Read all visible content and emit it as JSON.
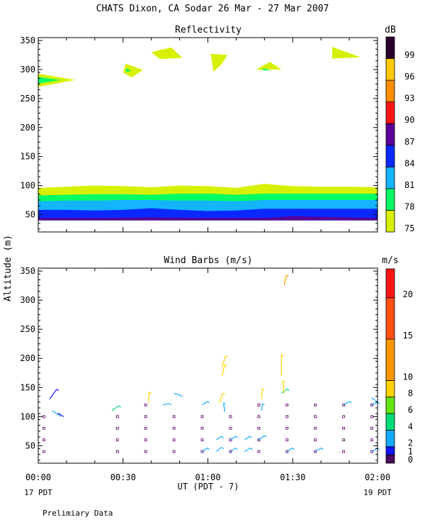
{
  "header": {
    "title": "CHATS Dixon, CA  Sodar  26 Mar - 27 Mar 2007"
  },
  "footer": {
    "note": "Prelimiary Data",
    "xlabel": "UT  (PDT - 7)",
    "start_day": "17 PDT",
    "end_day": "19 PDT"
  },
  "y_label": "Altitude (m)",
  "x_ticks": [
    "00:00",
    "00:30",
    "01:00",
    "01:30",
    "02:00"
  ],
  "colors": {
    "reflectivity_scale": [
      "#d7f000",
      "#00ff64",
      "#14b4ff",
      "#0a28ff",
      "#5a0096",
      "#ff1414",
      "#ff8c00",
      "#ffc800",
      "#2a002a"
    ],
    "wind_scale": [
      "#4a0a5a",
      "#1414ff",
      "#14aaff",
      "#00dc78",
      "#64e614",
      "#ffd200",
      "#ff9600",
      "#ff5014",
      "#ff1414"
    ]
  },
  "chart_data": [
    {
      "type": "heatmap",
      "title": "Reflectivity",
      "colorbar_unit": "dB",
      "colorbar_ticks": [
        "75",
        "78",
        "81",
        "84",
        "87",
        "90",
        "93",
        "96",
        "99"
      ],
      "colorbar_range": [
        75,
        101
      ],
      "xlim_minutes": [
        0,
        120
      ],
      "ylim": [
        20,
        355
      ],
      "ytick_labels": [
        "50",
        "100",
        "150",
        "200",
        "250",
        "300",
        "350"
      ],
      "ytick_values": [
        50,
        100,
        150,
        200,
        250,
        300,
        350
      ],
      "layers": [
        {
          "level": 75,
          "top": [
            [
              0,
              96
            ],
            [
              10,
              98
            ],
            [
              20,
              100
            ],
            [
              30,
              99
            ],
            [
              40,
              97
            ],
            [
              50,
              100
            ],
            [
              60,
              99
            ],
            [
              70,
              96
            ],
            [
              80,
              103
            ],
            [
              90,
              99
            ],
            [
              100,
              98
            ],
            [
              110,
              98
            ],
            [
              120,
              97
            ]
          ],
          "base": 40
        },
        {
          "level": 78,
          "top": [
            [
              0,
              83
            ],
            [
              10,
              84
            ],
            [
              20,
              85
            ],
            [
              30,
              85
            ],
            [
              40,
              84
            ],
            [
              50,
              86
            ],
            [
              60,
              86
            ],
            [
              70,
              84
            ],
            [
              80,
              86
            ],
            [
              90,
              86
            ],
            [
              100,
              86
            ],
            [
              110,
              86
            ],
            [
              120,
              86
            ]
          ],
          "base": 40
        },
        {
          "level": 81,
          "top": [
            [
              0,
              73
            ],
            [
              10,
              74
            ],
            [
              20,
              74
            ],
            [
              30,
              75
            ],
            [
              40,
              75
            ],
            [
              50,
              74
            ],
            [
              60,
              74
            ],
            [
              70,
              73
            ],
            [
              80,
              75
            ],
            [
              90,
              75
            ],
            [
              100,
              75
            ],
            [
              110,
              75
            ],
            [
              120,
              75
            ]
          ],
          "base": 40
        },
        {
          "level": 84,
          "top": [
            [
              0,
              58
            ],
            [
              10,
              58
            ],
            [
              20,
              57
            ],
            [
              30,
              58
            ],
            [
              40,
              61
            ],
            [
              50,
              58
            ],
            [
              60,
              56
            ],
            [
              70,
              57
            ],
            [
              80,
              60
            ],
            [
              90,
              60
            ],
            [
              100,
              60
            ],
            [
              110,
              60
            ],
            [
              120,
              60
            ]
          ],
          "base": 40
        },
        {
          "level": 87,
          "top": [
            [
              0,
              44
            ],
            [
              20,
              44
            ],
            [
              40,
              45
            ],
            [
              60,
              44
            ],
            [
              80,
              44
            ],
            [
              90,
              47
            ],
            [
              100,
              46
            ],
            [
              120,
              44
            ]
          ],
          "base": 40
        }
      ],
      "patches": [
        {
          "level": 75,
          "points": [
            [
              0,
              293
            ],
            [
              13,
              282
            ],
            [
              0,
              270
            ]
          ]
        },
        {
          "level": 78,
          "points": [
            [
              0,
              287
            ],
            [
              8,
              282
            ],
            [
              0,
              276
            ]
          ]
        },
        {
          "level": 75,
          "points": [
            [
              31,
              310
            ],
            [
              37,
              299
            ],
            [
              33,
              286
            ],
            [
              30,
              295
            ]
          ]
        },
        {
          "level": 78,
          "points": [
            [
              31,
              302
            ],
            [
              33,
              298
            ],
            [
              31,
              296
            ]
          ]
        },
        {
          "level": 75,
          "points": [
            [
              40,
              330
            ],
            [
              47,
              338
            ],
            [
              51,
              320
            ],
            [
              43,
              318
            ]
          ]
        },
        {
          "level": 75,
          "points": [
            [
              61,
              327
            ],
            [
              67,
              325
            ],
            [
              65,
              310
            ],
            [
              62,
              296
            ]
          ]
        },
        {
          "level": 75,
          "points": [
            [
              77,
              300
            ],
            [
              82,
              313
            ],
            [
              86,
              300
            ]
          ]
        },
        {
          "level": 78,
          "points": [
            [
              80,
              302
            ],
            [
              82,
              298
            ],
            [
              79,
              299
            ]
          ]
        },
        {
          "level": 75,
          "points": [
            [
              104,
              339
            ],
            [
              114,
              321
            ],
            [
              104,
              319
            ]
          ]
        }
      ]
    },
    {
      "type": "scatter",
      "title": "Wind Barbs (m/s)",
      "colorbar_unit": "m/s",
      "colorbar_ticks": [
        "0",
        "1",
        "2",
        "4",
        "6",
        "8",
        "10",
        "15",
        "20"
      ],
      "colorbar_range": [
        0,
        23.5
      ],
      "xlim_minutes": [
        0,
        120
      ],
      "ylim": [
        20,
        355
      ],
      "ytick_labels": [
        "50",
        "100",
        "150",
        "200",
        "250",
        "300",
        "350"
      ],
      "ytick_values": [
        50,
        100,
        150,
        200,
        250,
        300,
        350
      ],
      "calm_points": [
        [
          2,
          100
        ],
        [
          2,
          80
        ],
        [
          2,
          60
        ],
        [
          2,
          40
        ],
        [
          28,
          100
        ],
        [
          28,
          80
        ],
        [
          28,
          60
        ],
        [
          28,
          40
        ],
        [
          38,
          120
        ],
        [
          38,
          100
        ],
        [
          38,
          80
        ],
        [
          38,
          60
        ],
        [
          38,
          40
        ],
        [
          48,
          100
        ],
        [
          48,
          80
        ],
        [
          48,
          60
        ],
        [
          48,
          40
        ],
        [
          58,
          100
        ],
        [
          58,
          80
        ],
        [
          58,
          60
        ],
        [
          58,
          40
        ],
        [
          68,
          100
        ],
        [
          68,
          80
        ],
        [
          68,
          60
        ],
        [
          68,
          40
        ],
        [
          78,
          120
        ],
        [
          78,
          100
        ],
        [
          78,
          80
        ],
        [
          78,
          60
        ],
        [
          78,
          40
        ],
        [
          88,
          120
        ],
        [
          88,
          100
        ],
        [
          88,
          80
        ],
        [
          88,
          60
        ],
        [
          88,
          40
        ],
        [
          98,
          120
        ],
        [
          98,
          100
        ],
        [
          98,
          80
        ],
        [
          98,
          60
        ],
        [
          98,
          40
        ],
        [
          108,
          120
        ],
        [
          108,
          100
        ],
        [
          108,
          80
        ],
        [
          108,
          60
        ],
        [
          108,
          40
        ],
        [
          118,
          120
        ],
        [
          118,
          100
        ],
        [
          118,
          80
        ],
        [
          118,
          60
        ],
        [
          118,
          40
        ]
      ],
      "barbs": [
        [
          4,
          130,
          10,
          14,
          1.6
        ],
        [
          5,
          110,
          9,
          -6,
          2.5
        ],
        [
          9,
          100,
          -8,
          5,
          1.5
        ],
        [
          26,
          110,
          10,
          7,
          4.5
        ],
        [
          39,
          124,
          1,
          15,
          8
        ],
        [
          44,
          120,
          9,
          2,
          3
        ],
        [
          48,
          140,
          9,
          -3,
          3
        ],
        [
          58,
          120,
          7,
          5,
          2
        ],
        [
          58,
          40,
          7,
          5,
          3
        ],
        [
          63,
          40,
          7,
          6,
          3
        ],
        [
          68,
          40,
          7,
          5,
          3
        ],
        [
          73,
          40,
          8,
          5,
          3
        ],
        [
          88,
          40,
          7,
          5,
          3
        ],
        [
          98,
          40,
          8,
          5,
          3
        ],
        [
          118,
          40,
          8,
          5,
          3
        ],
        [
          63,
          60,
          7,
          5,
          3
        ],
        [
          68,
          60,
          7,
          5,
          3
        ],
        [
          73,
          60,
          7,
          5,
          3
        ],
        [
          78,
          60,
          8,
          6,
          3
        ],
        [
          108,
          120,
          8,
          5,
          2
        ],
        [
          118,
          120,
          8,
          4,
          3
        ],
        [
          120,
          125,
          -8,
          6,
          2
        ],
        [
          64,
          123,
          5,
          14,
          8
        ],
        [
          66,
          108,
          -2,
          13,
          2
        ],
        [
          65,
          185,
          5,
          16,
          8
        ],
        [
          65,
          170,
          4,
          16,
          8
        ],
        [
          79,
          130,
          1,
          15,
          8
        ],
        [
          79,
          110,
          1,
          10,
          2
        ],
        [
          86,
          140,
          8,
          6,
          4.5
        ],
        [
          86,
          170,
          0,
          30,
          8
        ],
        [
          87,
          325,
          3,
          15,
          10
        ],
        [
          87,
          140,
          -2,
          18,
          8
        ]
      ]
    }
  ]
}
